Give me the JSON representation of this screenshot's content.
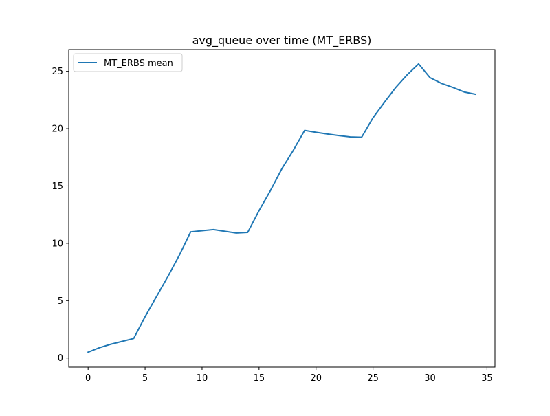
{
  "chart_data": {
    "type": "line",
    "title": "avg_queue over time (MT_ERBS)",
    "xlabel": "",
    "ylabel": "",
    "xlim": [
      -1.7,
      35.7
    ],
    "ylim": [
      -0.8,
      26.9
    ],
    "x_ticks": [
      0,
      5,
      10,
      15,
      20,
      25,
      30,
      35
    ],
    "y_ticks": [
      0,
      5,
      10,
      15,
      20,
      25
    ],
    "grid": false,
    "legend_position": "upper-left",
    "series": [
      {
        "name": "MT_ERBS mean",
        "color": "#1f77b4",
        "x": [
          0,
          1,
          2,
          3,
          4,
          5,
          6,
          7,
          8,
          9,
          10,
          11,
          12,
          13,
          14,
          15,
          16,
          17,
          18,
          19,
          20,
          21,
          22,
          23,
          24,
          25,
          26,
          27,
          28,
          29,
          30,
          31,
          32,
          33,
          34
        ],
        "y": [
          0.5,
          0.9,
          1.2,
          1.45,
          1.7,
          3.6,
          5.35,
          7.1,
          8.95,
          11.0,
          11.1,
          11.2,
          11.05,
          10.9,
          10.95,
          12.85,
          14.6,
          16.5,
          18.1,
          19.85,
          19.68,
          19.53,
          19.4,
          19.28,
          19.25,
          20.95,
          22.3,
          23.6,
          24.7,
          25.65,
          24.45,
          23.95,
          23.6,
          23.2,
          23.0
        ]
      }
    ]
  }
}
